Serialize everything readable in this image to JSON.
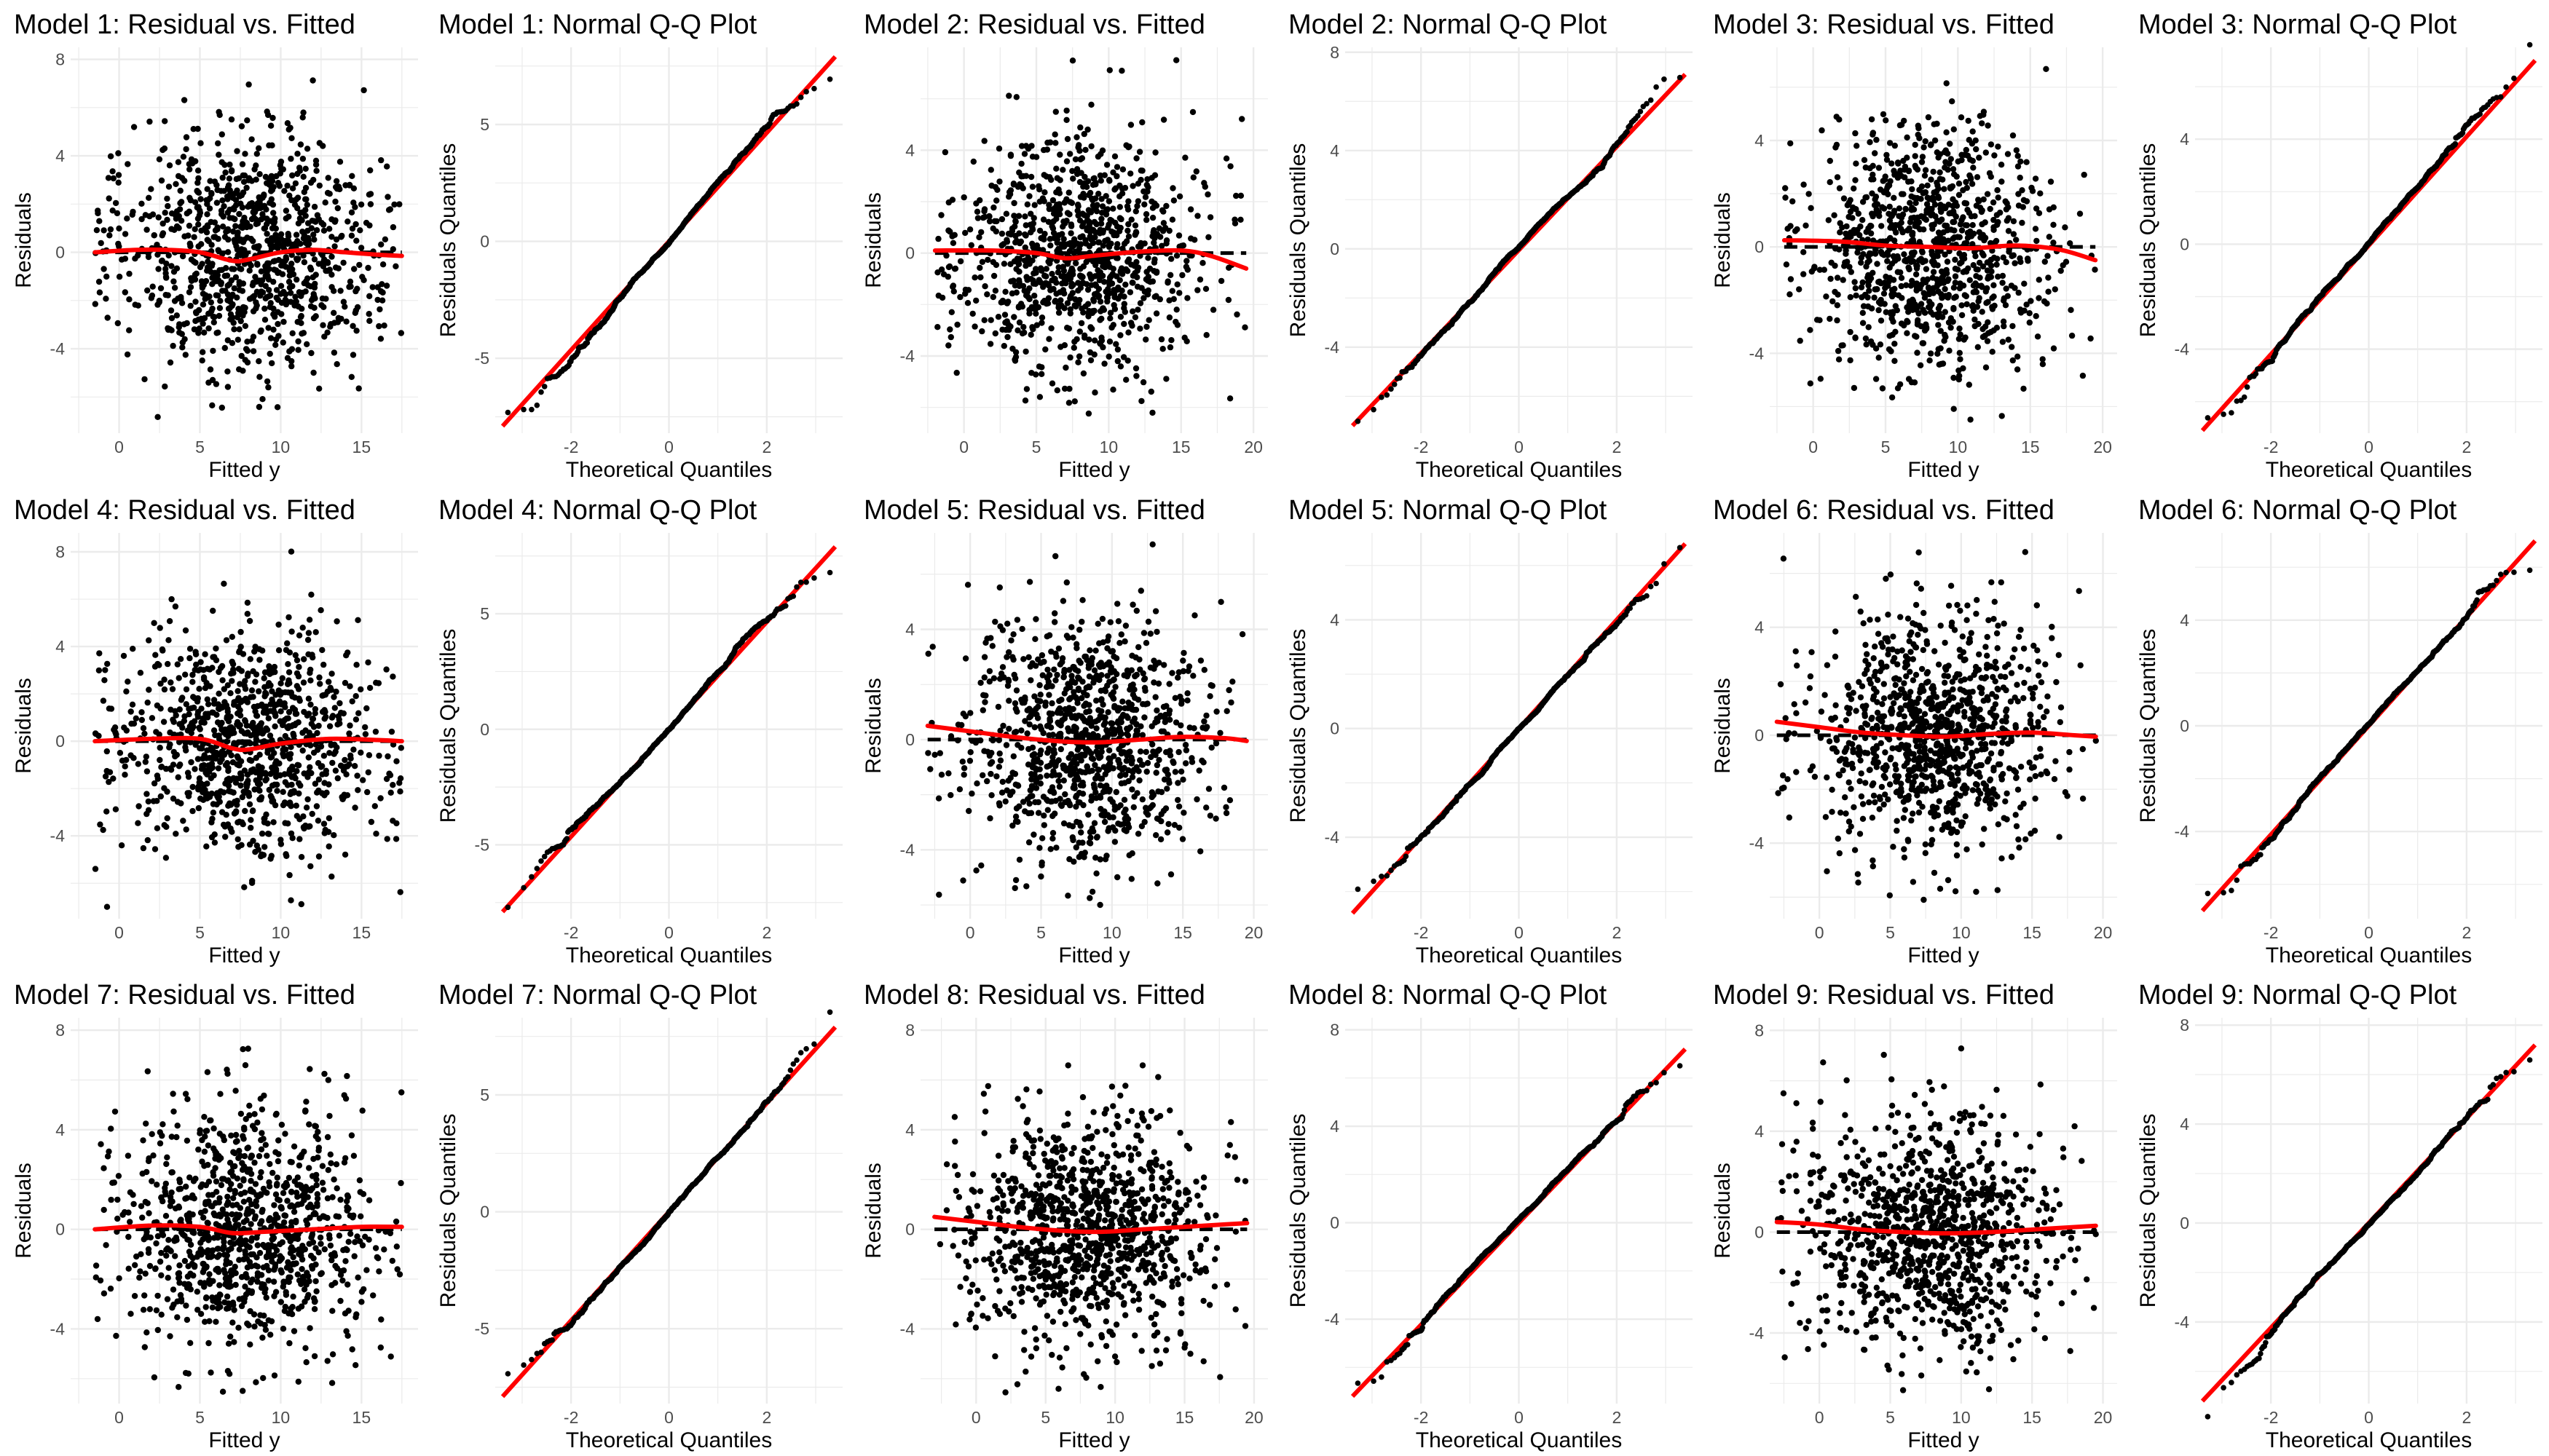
{
  "colors": {
    "points": "#000000",
    "smooth_line": "#ff0000",
    "reference_line": "#000000",
    "grid": "#ebebeb",
    "background": "#ffffff"
  },
  "chart_data": [
    {
      "type": "scatter",
      "kind": "residual",
      "title": "Model 1: Residual vs. Fitted",
      "xlabel": "Fitted y",
      "ylabel": "Residuals",
      "xlim": [
        -3,
        18.5
      ],
      "ylim": [
        -7.5,
        8.5
      ],
      "xticks": [
        0,
        5,
        10,
        15
      ],
      "yticks": [
        -4,
        0,
        4,
        8
      ],
      "x_center": 8,
      "x_spread": 4,
      "y_sd": 2.4,
      "n_points": 1000,
      "seed": 11,
      "smooth": {
        "x": [
          -1.5,
          1,
          3,
          5,
          7,
          8,
          10,
          12,
          14,
          16,
          17.5
        ],
        "y": [
          0,
          0.1,
          0.1,
          0,
          -0.35,
          -0.3,
          0,
          0.1,
          0,
          -0.1,
          -0.15
        ]
      }
    },
    {
      "type": "scatter",
      "kind": "qq",
      "title": "Model 1: Normal Q-Q Plot",
      "xlabel": "Theoretical Quantiles",
      "ylabel": "Residuals Quantiles",
      "xlim": [
        -3.55,
        3.55
      ],
      "ylim": [
        -8.2,
        8.3
      ],
      "xticks": [
        -2,
        0,
        2
      ],
      "yticks": [
        -5,
        0,
        5
      ],
      "sd": 2.35,
      "n_points": 1000,
      "seed": 12,
      "line": {
        "x": [
          -3.4,
          3.4
        ],
        "y": [
          -7.9,
          7.9
        ]
      }
    },
    {
      "type": "scatter",
      "kind": "residual",
      "title": "Model 2: Residual vs. Fitted",
      "xlabel": "Fitted y",
      "ylabel": "Residuals",
      "xlim": [
        -3,
        21
      ],
      "ylim": [
        -7,
        8
      ],
      "xticks": [
        0,
        5,
        10,
        15,
        20
      ],
      "yticks": [
        -4,
        0,
        4
      ],
      "x_center": 8,
      "x_spread": 4.2,
      "y_sd": 2.3,
      "n_points": 1000,
      "seed": 21,
      "smooth": {
        "x": [
          -2,
          2,
          5,
          7,
          9,
          12,
          15,
          17,
          19.5
        ],
        "y": [
          0.1,
          0.1,
          0,
          -0.2,
          -0.1,
          0.05,
          0.1,
          -0.1,
          -0.6
        ]
      }
    },
    {
      "type": "scatter",
      "kind": "qq",
      "title": "Model 2: Normal Q-Q Plot",
      "xlabel": "Theoretical Quantiles",
      "ylabel": "Residuals Quantiles",
      "xlim": [
        -3.55,
        3.55
      ],
      "ylim": [
        -7.5,
        8.2
      ],
      "xticks": [
        -2,
        0,
        2
      ],
      "yticks": [
        -4,
        0,
        4,
        8
      ],
      "sd": 2.1,
      "n_points": 1000,
      "seed": 22,
      "line": {
        "x": [
          -3.4,
          3.4
        ],
        "y": [
          -7.2,
          7.1
        ]
      }
    },
    {
      "type": "scatter",
      "kind": "residual",
      "title": "Model 3: Residual vs. Fitted",
      "xlabel": "Fitted y",
      "ylabel": "Residuals",
      "xlim": [
        -3,
        21
      ],
      "ylim": [
        -7,
        7.5
      ],
      "xticks": [
        0,
        5,
        10,
        15,
        20
      ],
      "yticks": [
        -4,
        0,
        4
      ],
      "x_center": 8,
      "x_spread": 4,
      "y_sd": 2.3,
      "n_points": 1000,
      "seed": 31,
      "smooth": {
        "x": [
          -2,
          2,
          5,
          8,
          11,
          14,
          17,
          19.5
        ],
        "y": [
          0.25,
          0.2,
          0.05,
          0,
          -0.05,
          0.05,
          -0.1,
          -0.5
        ]
      }
    },
    {
      "type": "scatter",
      "kind": "qq",
      "title": "Model 3: Normal Q-Q Plot",
      "xlabel": "Theoretical Quantiles",
      "ylabel": "Residuals Quantiles",
      "xlim": [
        -3.55,
        3.55
      ],
      "ylim": [
        -7.2,
        7.5
      ],
      "xticks": [
        -2,
        0,
        2
      ],
      "yticks": [
        -4,
        0,
        4
      ],
      "sd": 2.05,
      "n_points": 1000,
      "seed": 32,
      "line": {
        "x": [
          -3.4,
          3.4
        ],
        "y": [
          -7.1,
          7
        ]
      }
    },
    {
      "type": "scatter",
      "kind": "residual",
      "title": "Model 4: Residual vs. Fitted",
      "xlabel": "Fitted y",
      "ylabel": "Residuals",
      "xlim": [
        -3,
        18.5
      ],
      "ylim": [
        -7.5,
        8.8
      ],
      "xticks": [
        0,
        5,
        10,
        15
      ],
      "yticks": [
        -4,
        0,
        4,
        8
      ],
      "x_center": 8,
      "x_spread": 4,
      "y_sd": 2.4,
      "n_points": 1000,
      "seed": 41,
      "smooth": {
        "x": [
          -1.5,
          2,
          5,
          7,
          8,
          10,
          13,
          16,
          17.5
        ],
        "y": [
          0,
          0.1,
          0.1,
          -0.3,
          -0.35,
          -0.1,
          0.1,
          0.05,
          0
        ]
      }
    },
    {
      "type": "scatter",
      "kind": "qq",
      "title": "Model 4: Normal Q-Q Plot",
      "xlabel": "Theoretical Quantiles",
      "ylabel": "Residuals Quantiles",
      "xlim": [
        -3.55,
        3.55
      ],
      "ylim": [
        -8.2,
        8.5
      ],
      "xticks": [
        -2,
        0,
        2
      ],
      "yticks": [
        -5,
        0,
        5
      ],
      "sd": 2.35,
      "n_points": 1000,
      "seed": 42,
      "line": {
        "x": [
          -3.4,
          3.4
        ],
        "y": [
          -7.9,
          7.9
        ]
      }
    },
    {
      "type": "scatter",
      "kind": "residual",
      "title": "Model 5: Residual vs. Fitted",
      "xlabel": "Fitted y",
      "ylabel": "Residuals",
      "xlim": [
        -3.5,
        21
      ],
      "ylim": [
        -6.5,
        7.5
      ],
      "xticks": [
        0,
        5,
        10,
        15,
        20
      ],
      "yticks": [
        -4,
        0,
        4
      ],
      "x_center": 8,
      "x_spread": 4.2,
      "y_sd": 2.2,
      "n_points": 1000,
      "seed": 51,
      "smooth": {
        "x": [
          -3,
          0,
          3,
          6,
          9,
          12,
          15,
          18,
          19.5
        ],
        "y": [
          0.5,
          0.3,
          0.1,
          -0.05,
          -0.1,
          0,
          0.1,
          0.05,
          -0.05
        ]
      }
    },
    {
      "type": "scatter",
      "kind": "qq",
      "title": "Model 5: Normal Q-Q Plot",
      "xlabel": "Theoretical Quantiles",
      "ylabel": "Residuals Quantiles",
      "xlim": [
        -3.55,
        3.55
      ],
      "ylim": [
        -7,
        7.2
      ],
      "xticks": [
        -2,
        0,
        2
      ],
      "yticks": [
        -4,
        0,
        4
      ],
      "sd": 2.0,
      "n_points": 1000,
      "seed": 52,
      "line": {
        "x": [
          -3.4,
          3.4
        ],
        "y": [
          -6.8,
          6.8
        ]
      }
    },
    {
      "type": "scatter",
      "kind": "residual",
      "title": "Model 6: Residual vs. Fitted",
      "xlabel": "Fitted y",
      "ylabel": "Residuals",
      "xlim": [
        -3.5,
        21
      ],
      "ylim": [
        -6.8,
        7.5
      ],
      "xticks": [
        0,
        5,
        10,
        15,
        20
      ],
      "yticks": [
        -4,
        0,
        4
      ],
      "x_center": 8,
      "x_spread": 4.2,
      "y_sd": 2.2,
      "n_points": 1000,
      "seed": 61,
      "smooth": {
        "x": [
          -3,
          0,
          3,
          6,
          9,
          12,
          15,
          18,
          19.5
        ],
        "y": [
          0.5,
          0.3,
          0.1,
          0,
          -0.05,
          0.05,
          0.1,
          0,
          -0.05
        ]
      }
    },
    {
      "type": "scatter",
      "kind": "qq",
      "title": "Model 6: Normal Q-Q Plot",
      "xlabel": "Theoretical Quantiles",
      "ylabel": "Residuals Quantiles",
      "xlim": [
        -3.55,
        3.55
      ],
      "ylim": [
        -7.3,
        7.3
      ],
      "xticks": [
        -2,
        0,
        2
      ],
      "yticks": [
        -4,
        0,
        4
      ],
      "sd": 2.05,
      "n_points": 1000,
      "seed": 62,
      "line": {
        "x": [
          -3.4,
          3.4
        ],
        "y": [
          -7,
          7
        ]
      }
    },
    {
      "type": "scatter",
      "kind": "residual",
      "title": "Model 7: Residual vs. Fitted",
      "xlabel": "Fitted y",
      "ylabel": "Residuals",
      "xlim": [
        -3,
        18.5
      ],
      "ylim": [
        -7,
        8.5
      ],
      "xticks": [
        0,
        5,
        10,
        15
      ],
      "yticks": [
        -4,
        0,
        4,
        8
      ],
      "x_center": 8,
      "x_spread": 4,
      "y_sd": 2.4,
      "n_points": 1000,
      "seed": 71,
      "smooth": {
        "x": [
          -1.5,
          2,
          5,
          7,
          9,
          12,
          15,
          17.5
        ],
        "y": [
          0,
          0.15,
          0.1,
          -0.15,
          -0.1,
          0,
          0.1,
          0.1
        ]
      }
    },
    {
      "type": "scatter",
      "kind": "qq",
      "title": "Model 7: Normal Q-Q Plot",
      "xlabel": "Theoretical Quantiles",
      "ylabel": "Residuals Quantiles",
      "xlim": [
        -3.55,
        3.55
      ],
      "ylim": [
        -8.2,
        8.3
      ],
      "xticks": [
        -2,
        0,
        2
      ],
      "yticks": [
        -5,
        0,
        5
      ],
      "sd": 2.35,
      "n_points": 1000,
      "seed": 72,
      "line": {
        "x": [
          -3.4,
          3.4
        ],
        "y": [
          -7.9,
          7.9
        ]
      }
    },
    {
      "type": "scatter",
      "kind": "residual",
      "title": "Model 8: Residual vs. Fitted",
      "xlabel": "Fitted y",
      "ylabel": "Residuals",
      "xlim": [
        -4,
        21
      ],
      "ylim": [
        -7,
        8.5
      ],
      "xticks": [
        0,
        5,
        10,
        15,
        20
      ],
      "yticks": [
        -4,
        0,
        4,
        8
      ],
      "x_center": 8,
      "x_spread": 4.3,
      "y_sd": 2.4,
      "n_points": 1000,
      "seed": 81,
      "smooth": {
        "x": [
          -3,
          0,
          3,
          6,
          9,
          12,
          15,
          18,
          19.5
        ],
        "y": [
          0.5,
          0.3,
          0.1,
          -0.05,
          -0.1,
          0,
          0.1,
          0.2,
          0.25
        ]
      }
    },
    {
      "type": "scatter",
      "kind": "qq",
      "title": "Model 8: Normal Q-Q Plot",
      "xlabel": "Theoretical Quantiles",
      "ylabel": "Residuals Quantiles",
      "xlim": [
        -3.55,
        3.55
      ],
      "ylim": [
        -7.5,
        8.5
      ],
      "xticks": [
        -2,
        0,
        2
      ],
      "yticks": [
        -4,
        0,
        4,
        8
      ],
      "sd": 2.1,
      "n_points": 1000,
      "seed": 82,
      "line": {
        "x": [
          -3.4,
          3.4
        ],
        "y": [
          -7.2,
          7.2
        ]
      }
    },
    {
      "type": "scatter",
      "kind": "residual",
      "title": "Model 9: Residual vs. Fitted",
      "xlabel": "Fitted y",
      "ylabel": "Residuals",
      "xlim": [
        -3.5,
        21
      ],
      "ylim": [
        -6.8,
        8.5
      ],
      "xticks": [
        0,
        5,
        10,
        15,
        20
      ],
      "yticks": [
        -4,
        0,
        4,
        8
      ],
      "x_center": 8,
      "x_spread": 4.2,
      "y_sd": 2.3,
      "n_points": 1000,
      "seed": 91,
      "smooth": {
        "x": [
          -3,
          0,
          3,
          6,
          9,
          12,
          15,
          18,
          19.5
        ],
        "y": [
          0.4,
          0.3,
          0.1,
          0,
          -0.05,
          0,
          0.1,
          0.2,
          0.25
        ]
      }
    },
    {
      "type": "scatter",
      "kind": "qq",
      "title": "Model 9: Normal Q-Q Plot",
      "xlabel": "Theoretical Quantiles",
      "ylabel": "Residuals Quantiles",
      "xlim": [
        -3.55,
        3.55
      ],
      "ylim": [
        -7.3,
        8.3
      ],
      "xticks": [
        -2,
        0,
        2
      ],
      "yticks": [
        -4,
        0,
        4,
        8
      ],
      "sd": 2.15,
      "n_points": 1000,
      "seed": 92,
      "line": {
        "x": [
          -3.4,
          3.4
        ],
        "y": [
          -7.2,
          7.2
        ]
      }
    }
  ]
}
